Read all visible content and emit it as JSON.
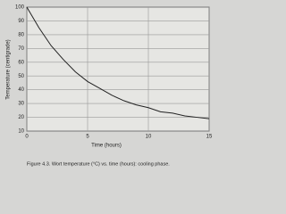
{
  "chart_data": {
    "type": "line",
    "caption": "Figure 4.3.  Wort temperature (°C) vs. time (hours): cooling phase.",
    "xlabel": "Time (hours)",
    "ylabel": "Temperature (centigrade)",
    "x": [
      0,
      1,
      2,
      3,
      4,
      5,
      6,
      7,
      8,
      9,
      10,
      11,
      12,
      13,
      14,
      15
    ],
    "series": [
      {
        "name": "Wort temperature",
        "color": "#222222",
        "values": [
          100,
          85,
          72,
          62,
          53,
          46,
          41,
          36,
          32,
          29,
          27,
          24,
          23,
          21,
          20,
          19
        ]
      }
    ],
    "xlim": [
      0,
      15
    ],
    "xticks": [
      0,
      5,
      10,
      15
    ],
    "ylim": [
      10,
      100
    ],
    "yticks": [
      10,
      20,
      30,
      40,
      50,
      60,
      70,
      80,
      90,
      100
    ],
    "grid": true
  }
}
